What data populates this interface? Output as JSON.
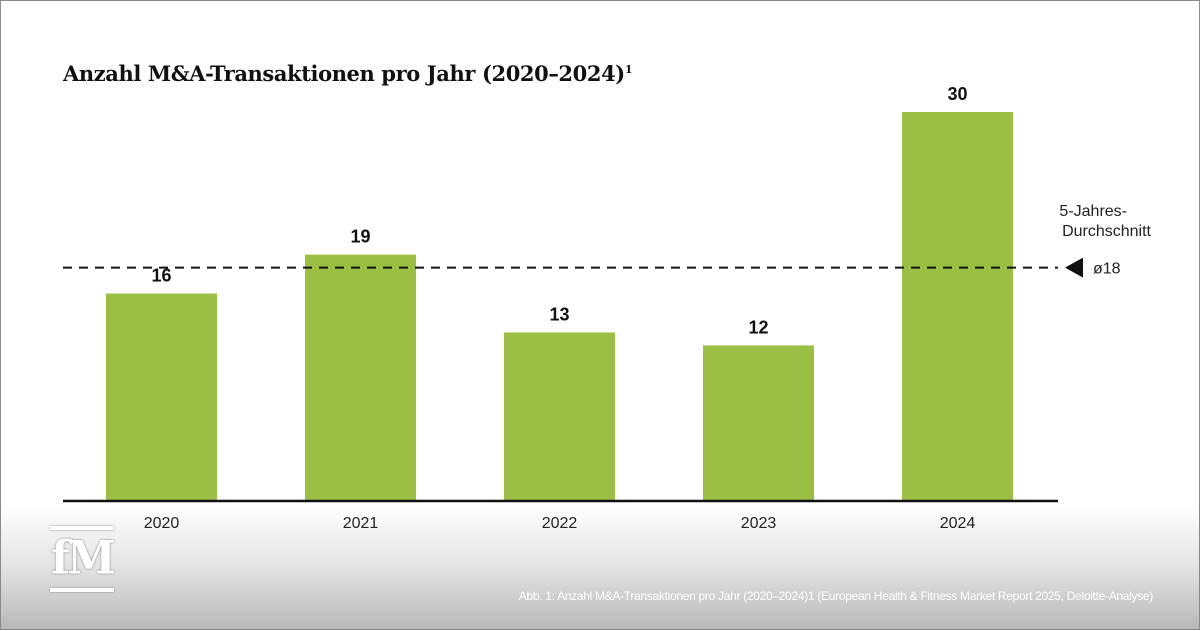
{
  "chart_data": {
    "type": "bar",
    "title": "Anzahl M&A-Transaktionen pro Jahr (2020–2024)",
    "title_footnote": "1",
    "categories": [
      "2020",
      "2021",
      "2022",
      "2023",
      "2024"
    ],
    "values": [
      16,
      19,
      13,
      12,
      30
    ],
    "ylim": [
      0,
      30
    ],
    "grid": false,
    "bar_color": "#9bbf45",
    "reference_line": {
      "value": 18,
      "label_line1": "5-Jahres-",
      "label_line2": "Durchschnitt",
      "value_label": "ø18",
      "style": "dashed"
    }
  },
  "caption": "Abb. 1: Anzahl M&A-Transaktionen pro Jahr (2020–2024)1 (European Health & Fitness Market Report 2025, Deloitte-Analyse)",
  "logo": {
    "text": "fM"
  }
}
